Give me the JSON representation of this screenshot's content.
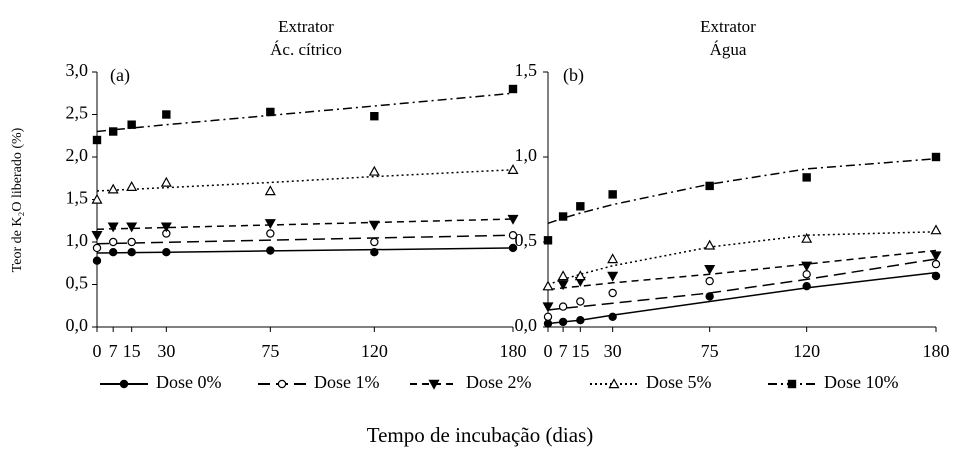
{
  "xlabel": "Tempo de incubação (dias)",
  "chart_data": [
    {
      "type": "scatter",
      "title": [
        "Extrator",
        "Ác. cítrico"
      ],
      "panel_label": "(a)",
      "ylabel": "Teor de K₂O liberado (%)",
      "x": [
        0,
        7,
        15,
        30,
        75,
        120,
        180
      ],
      "xlim": [
        0,
        180
      ],
      "xticks": [
        0,
        7,
        15,
        30,
        75,
        120,
        180
      ],
      "ylim": [
        0,
        3
      ],
      "yticks": [
        {
          "value": 0,
          "label": "0,0"
        },
        {
          "value": 0.5,
          "label": "0,5"
        },
        {
          "value": 1,
          "label": "1,0"
        },
        {
          "value": 1.5,
          "label": "1,5"
        },
        {
          "value": 2,
          "label": "2,0"
        },
        {
          "value": 2.5,
          "label": "2,5"
        },
        {
          "value": 3,
          "label": "3,0"
        }
      ],
      "series": [
        {
          "name": "Dose 0%",
          "marker": "circle-filled",
          "line_style": "solid",
          "color": "#000",
          "values": [
            0.78,
            0.88,
            0.88,
            0.88,
            0.9,
            0.88,
            0.93
          ],
          "trend": [
            0.87,
            0.872,
            0.875,
            0.88,
            0.895,
            0.91,
            0.93
          ]
        },
        {
          "name": "Dose 1%",
          "marker": "circle-open",
          "line_style": "long-dash",
          "color": "#000",
          "values": [
            0.93,
            1.0,
            1.0,
            1.1,
            1.1,
            1.0,
            1.08
          ],
          "trend": [
            0.98,
            0.984,
            0.988,
            0.997,
            1.022,
            1.047,
            1.08
          ]
        },
        {
          "name": "Dose 2%",
          "marker": "triangle-down-filled",
          "line_style": "dash",
          "color": "#000",
          "values": [
            1.08,
            1.18,
            1.18,
            1.18,
            1.22,
            1.2,
            1.27
          ],
          "trend": [
            1.15,
            1.155,
            1.16,
            1.17,
            1.2,
            1.23,
            1.27
          ]
        },
        {
          "name": "Dose 5%",
          "marker": "triangle-up-open",
          "line_style": "dot",
          "color": "#000",
          "values": [
            1.5,
            1.62,
            1.65,
            1.7,
            1.6,
            1.83,
            1.85
          ],
          "trend": [
            1.6,
            1.61,
            1.62,
            1.64,
            1.7,
            1.77,
            1.85
          ]
        },
        {
          "name": "Dose 10%",
          "marker": "square-filled",
          "line_style": "dash-dot",
          "color": "#000",
          "values": [
            2.2,
            2.3,
            2.38,
            2.5,
            2.53,
            2.48,
            2.8
          ],
          "trend": [
            2.3,
            2.32,
            2.34,
            2.38,
            2.49,
            2.6,
            2.75
          ]
        }
      ]
    },
    {
      "type": "scatter",
      "title": [
        "Extrator",
        "Água"
      ],
      "panel_label": "(b)",
      "x": [
        0,
        7,
        15,
        30,
        75,
        120,
        180
      ],
      "xlim": [
        0,
        180
      ],
      "xticks": [
        0,
        7,
        15,
        30,
        75,
        120,
        180
      ],
      "ylim": [
        0,
        1.5
      ],
      "yticks": [
        {
          "value": 0,
          "label": "0,0"
        },
        {
          "value": 0.5,
          "label": "0,5"
        },
        {
          "value": 1,
          "label": "1,0"
        },
        {
          "value": 1.5,
          "label": "1,5"
        }
      ],
      "series": [
        {
          "marker": "circle-filled",
          "line_style": "solid",
          "color": "#000",
          "values": [
            0.02,
            0.03,
            0.04,
            0.06,
            0.18,
            0.24,
            0.3
          ],
          "trend": [
            0.02,
            0.03,
            0.04,
            0.07,
            0.15,
            0.23,
            0.32
          ]
        },
        {
          "marker": "circle-open",
          "line_style": "long-dash",
          "color": "#000",
          "values": [
            0.06,
            0.12,
            0.15,
            0.2,
            0.27,
            0.31,
            0.37
          ],
          "trend": [
            0.1,
            0.11,
            0.12,
            0.14,
            0.2,
            0.28,
            0.4
          ]
        },
        {
          "marker": "triangle-down-filled",
          "line_style": "dash",
          "color": "#000",
          "values": [
            0.12,
            0.25,
            0.27,
            0.3,
            0.34,
            0.36,
            0.42
          ],
          "trend": [
            0.22,
            0.23,
            0.24,
            0.26,
            0.31,
            0.37,
            0.45
          ]
        },
        {
          "marker": "triangle-up-open",
          "line_style": "dot",
          "color": "#000",
          "values": [
            0.24,
            0.3,
            0.3,
            0.4,
            0.48,
            0.52,
            0.57
          ],
          "trend": [
            0.25,
            0.28,
            0.31,
            0.36,
            0.47,
            0.54,
            0.56
          ]
        },
        {
          "marker": "square-filled",
          "line_style": "dash-dot",
          "color": "#000",
          "values": [
            0.51,
            0.65,
            0.71,
            0.78,
            0.83,
            0.88,
            1.0
          ],
          "trend": [
            0.61,
            0.64,
            0.67,
            0.72,
            0.84,
            0.93,
            0.99
          ]
        }
      ]
    }
  ]
}
